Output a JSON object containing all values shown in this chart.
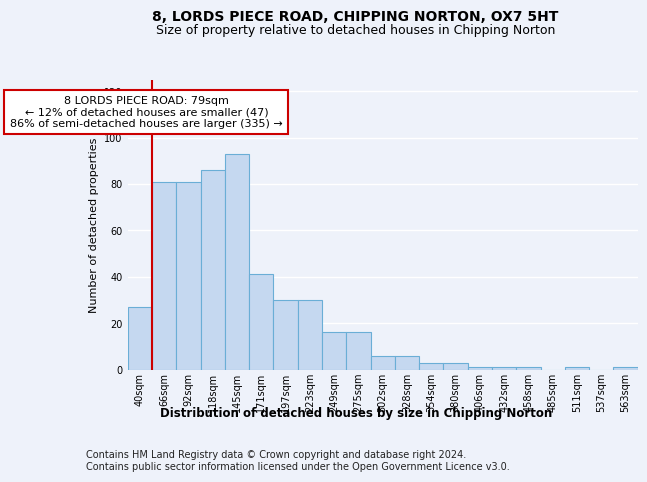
{
  "title": "8, LORDS PIECE ROAD, CHIPPING NORTON, OX7 5HT",
  "subtitle": "Size of property relative to detached houses in Chipping Norton",
  "xlabel": "Distribution of detached houses by size in Chipping Norton",
  "ylabel": "Number of detached properties",
  "categories": [
    "40sqm",
    "66sqm",
    "92sqm",
    "118sqm",
    "145sqm",
    "171sqm",
    "197sqm",
    "223sqm",
    "249sqm",
    "275sqm",
    "302sqm",
    "328sqm",
    "354sqm",
    "380sqm",
    "406sqm",
    "432sqm",
    "458sqm",
    "485sqm",
    "511sqm",
    "537sqm",
    "563sqm"
  ],
  "values": [
    27,
    81,
    81,
    86,
    93,
    41,
    30,
    30,
    16,
    16,
    6,
    6,
    3,
    3,
    1,
    1,
    1,
    0,
    1,
    0,
    1
  ],
  "bar_color": "#c5d8f0",
  "bar_edge_color": "#6aaed6",
  "vline_x": 0.5,
  "vline_color": "#cc0000",
  "annotation_text": "8 LORDS PIECE ROAD: 79sqm\n← 12% of detached houses are smaller (47)\n86% of semi-detached houses are larger (335) →",
  "annotation_box_facecolor": "#ffffff",
  "annotation_box_edgecolor": "#cc0000",
  "ylim": [
    0,
    125
  ],
  "yticks": [
    0,
    20,
    40,
    60,
    80,
    100,
    120
  ],
  "footer_line1": "Contains HM Land Registry data © Crown copyright and database right 2024.",
  "footer_line2": "Contains public sector information licensed under the Open Government Licence v3.0.",
  "bg_color": "#eef2fa",
  "plot_bg_color": "#eef2fa",
  "grid_color": "#ffffff",
  "title_fontsize": 10,
  "subtitle_fontsize": 9,
  "xlabel_fontsize": 8.5,
  "ylabel_fontsize": 8,
  "tick_fontsize": 7,
  "footer_fontsize": 7,
  "annotation_fontsize": 8
}
